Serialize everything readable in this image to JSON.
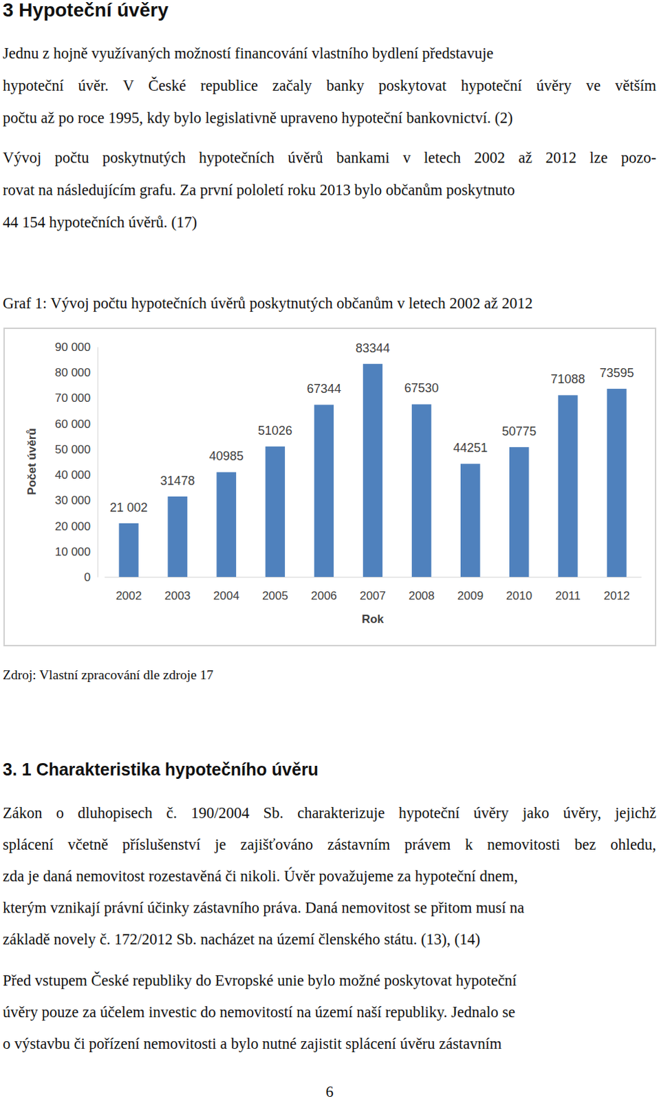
{
  "document": {
    "heading": "3 Hypoteční úvěry",
    "intro_lines": [
      "Jednu z hojně využívaných možností financování vlastního bydlení představuje",
      "hypoteční úvěr. V České republice začaly banky poskytovat hypoteční úvěry ve větším",
      "počtu až po roce 1995, kdy bylo legislativně upraveno hypoteční bankovnictví. (2)",
      "Vývoj počtu poskytnutých hypotečních úvěrů bankami v letech 2002 až 2012 lze pozo-",
      "rovat na následujícím grafu. Za první pololetí roku 2013 bylo občanům poskytnuto",
      "44 154 hypotečních úvěrů. (17)"
    ],
    "figure_caption": "Graf 1: Vývoj počtu hypotečních úvěrů poskytnutých občanům v letech 2002 až 2012",
    "figure_source": "Zdroj: Vlastní zpracování dle zdroje 17",
    "section_heading": "3. 1 Charakteristika hypotečního úvěru",
    "paragraphs": [
      [
        "Zákon o dluhopisech č. 190/2004 Sb. charakterizuje hypoteční úvěry jako úvěry, jejichž",
        "splácení včetně příslušenství je zajišťováno zástavním právem k nemovitosti bez ohledu,",
        "zda je daná nemovitost rozestavěná či nikoli. Úvěr považujeme za hypoteční dnem,",
        "kterým vznikají právní účinky zástavního práva. Daná nemovitost se přitom musí na",
        "základě novely č. 172/2012 Sb. nacházet na území členského státu. (13), (14)"
      ],
      [
        "Před vstupem České republiky do Evropské unie bylo možné poskytovat hypoteční",
        "úvěry pouze za účelem investic do nemovitostí na území naší republiky. Jednalo se",
        "o výstavbu či pořízení nemovitosti a bylo nutné zajistit splácení úvěru zástavním"
      ]
    ],
    "page_number": 6
  },
  "chart_data": {
    "type": "bar",
    "categories": [
      "2002",
      "2003",
      "2004",
      "2005",
      "2006",
      "2007",
      "2008",
      "2009",
      "2010",
      "2011",
      "2012"
    ],
    "values": [
      21002,
      31478,
      40985,
      51026,
      67344,
      83344,
      67530,
      44251,
      50775,
      71088,
      73595
    ],
    "value_labels": [
      "21 002",
      "31478",
      "40985",
      "51026",
      "67344",
      "83344",
      "67530",
      "44251",
      "50775",
      "71088",
      "73595"
    ],
    "color": "#4f81bd",
    "x_label": "Rok",
    "y_label": "Počet úvěrů",
    "ylim": [
      0,
      90000
    ],
    "yticks": [
      0,
      {
        "value": 10000,
        "label": "10 000"
      },
      {
        "value": 20000,
        "label": "20 000"
      },
      {
        "value": 30000,
        "label": "30 000"
      },
      {
        "value": 40000,
        "label": "40 000"
      },
      {
        "value": 50000,
        "label": "50 000"
      },
      {
        "value": 60000,
        "label": "60 000"
      },
      {
        "value": 70000,
        "label": "70 000"
      },
      {
        "value": 80000,
        "label": "80 000"
      },
      {
        "value": 90000,
        "label": "90 000"
      }
    ],
    "grid": false,
    "data_labels": true
  }
}
